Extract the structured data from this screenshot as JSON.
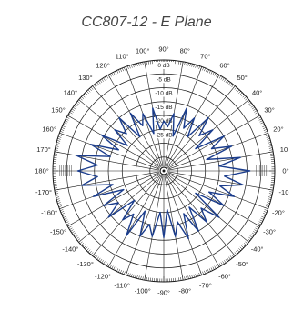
{
  "chart_data": {
    "type": "polar_line",
    "title": "CC807-12 - E Plane",
    "radial_axis": {
      "unit": "dB",
      "ticks": [
        {
          "value": 0,
          "label": "0 dB"
        },
        {
          "value": -5,
          "label": "-5 dB"
        },
        {
          "value": -10,
          "label": "-10 dB"
        },
        {
          "value": -15,
          "label": "-15 dB"
        },
        {
          "value": -20,
          "label": "-20 dB"
        },
        {
          "value": -25,
          "label": "-25 dB"
        }
      ],
      "range": [
        -40,
        0
      ]
    },
    "angular_axis": {
      "labels": [
        "0°",
        "10",
        "20°",
        "30°",
        "40°",
        "50°",
        "60°",
        "70°",
        "80°",
        "90°",
        "100°",
        "110°",
        "120°",
        "130°",
        "140°",
        "150°",
        "160°",
        "170°",
        "180°",
        "-170°",
        "-160°",
        "-150°",
        "-140°",
        "-130°",
        "-120°",
        "-110°",
        "-100°",
        "-90°",
        "-80°",
        "-70°",
        "-60°",
        "-50°",
        "-40°",
        "-30°",
        "-20°",
        "-10"
      ]
    },
    "series": [
      {
        "color": "#1a3c8c",
        "angles_deg": [
          0,
          5,
          10,
          15,
          20,
          25,
          30,
          35,
          40,
          45,
          50,
          55,
          60,
          65,
          70,
          75,
          80,
          85,
          90,
          95,
          100,
          105,
          110,
          115,
          120,
          125,
          130,
          135,
          140,
          145,
          150,
          155,
          160,
          165,
          170,
          175,
          180,
          185,
          190,
          195,
          200,
          205,
          210,
          215,
          220,
          225,
          230,
          235,
          240,
          245,
          250,
          255,
          260,
          265,
          270,
          275,
          280,
          285,
          290,
          295,
          300,
          305,
          310,
          315,
          320,
          325,
          330,
          335,
          340,
          345,
          350,
          355
        ],
        "values_db": [
          -9,
          -20,
          -12,
          -24,
          -14,
          -21,
          -15,
          -26,
          -17,
          -22,
          -15,
          -25,
          -18,
          -23,
          -16,
          -27,
          -19,
          -24,
          -22,
          -25,
          -17,
          -26,
          -18,
          -22,
          -16,
          -25,
          -15,
          -21,
          -17,
          -24,
          -14,
          -22,
          -12,
          -20,
          -8,
          -16,
          -9,
          -16,
          -10,
          -21,
          -13,
          -24,
          -15,
          -20,
          -14,
          -25,
          -17,
          -21,
          -13,
          -24,
          -15,
          -20,
          -16,
          -25,
          -16,
          -26,
          -16,
          -21,
          -14,
          -23,
          -15,
          -24,
          -16,
          -21,
          -14,
          -26,
          -15,
          -22,
          -13,
          -19,
          -11,
          -18
        ]
      }
    ]
  }
}
